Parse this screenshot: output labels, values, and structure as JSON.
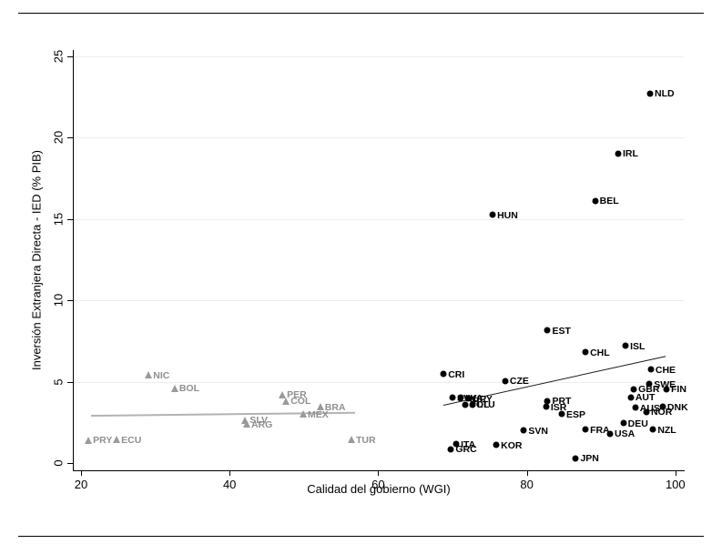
{
  "chart_data": {
    "type": "scatter",
    "title": "",
    "xlabel": "Calidad del gobierno (WGI)",
    "ylabel": "Inversión Extranjera Directa - IED (% PIB)",
    "xlim": [
      20,
      100
    ],
    "ylim": [
      0,
      25
    ],
    "x_ticks": [
      "20",
      "40",
      "60",
      "80",
      "100"
    ],
    "y_ticks": [
      "0",
      "5",
      "10",
      "15",
      "20",
      "25"
    ],
    "grid": "horizontal-light",
    "legend_position": "none",
    "series": [
      {
        "name": "america-latina",
        "marker": "triangle",
        "color": "#9a9a9a",
        "label_color": "#8f8f8f",
        "points": [
          {
            "label": "PRY",
            "x": 21.0,
            "y": 1.4
          },
          {
            "label": "ECU",
            "x": 24.8,
            "y": 1.45
          },
          {
            "label": "NIC",
            "x": 29.1,
            "y": 5.4
          },
          {
            "label": "BOL",
            "x": 32.6,
            "y": 4.6
          },
          {
            "label": "SLV",
            "x": 42.1,
            "y": 2.65
          },
          {
            "label": "ARG",
            "x": 42.3,
            "y": 2.4
          },
          {
            "label": "PER",
            "x": 47.1,
            "y": 4.2
          },
          {
            "label": "COL",
            "x": 47.6,
            "y": 3.8
          },
          {
            "label": "MEX",
            "x": 49.9,
            "y": 3.0
          },
          {
            "label": "BRA",
            "x": 52.2,
            "y": 3.45
          },
          {
            "label": "TUR",
            "x": 56.4,
            "y": 1.45
          }
        ]
      },
      {
        "name": "ocde",
        "marker": "circle",
        "color": "#000000",
        "label_color": "#000000",
        "points": [
          {
            "label": "CRI",
            "x": 68.8,
            "y": 5.45
          },
          {
            "label": "GRC",
            "x": 69.8,
            "y": 0.85
          },
          {
            "label": "ITA",
            "x": 70.5,
            "y": 1.15
          },
          {
            "label": "SVK",
            "x": 70.0,
            "y": 4.0
          },
          {
            "label": "LVA",
            "x": 71.1,
            "y": 4.0
          },
          {
            "label": "URY",
            "x": 72.1,
            "y": 3.95
          },
          {
            "label": "POL",
            "x": 71.7,
            "y": 3.6
          },
          {
            "label": "LTU",
            "x": 72.7,
            "y": 3.6
          },
          {
            "label": "HUN",
            "x": 75.4,
            "y": 15.25
          },
          {
            "label": "KOR",
            "x": 75.9,
            "y": 1.1
          },
          {
            "label": "CZE",
            "x": 77.1,
            "y": 5.05
          },
          {
            "label": "SVN",
            "x": 79.6,
            "y": 2.0
          },
          {
            "label": "EST",
            "x": 82.8,
            "y": 8.15
          },
          {
            "label": "PRT",
            "x": 82.8,
            "y": 3.8
          },
          {
            "label": "ISR",
            "x": 82.6,
            "y": 3.45
          },
          {
            "label": "ESP",
            "x": 84.7,
            "y": 3.0
          },
          {
            "label": "JPN",
            "x": 86.6,
            "y": 0.3
          },
          {
            "label": "CHL",
            "x": 87.9,
            "y": 6.8
          },
          {
            "label": "FRA",
            "x": 87.9,
            "y": 2.05
          },
          {
            "label": "BEL",
            "x": 89.2,
            "y": 16.1
          },
          {
            "label": "USA",
            "x": 91.2,
            "y": 1.8
          },
          {
            "label": "IRL",
            "x": 92.3,
            "y": 19.0
          },
          {
            "label": "DEU",
            "x": 93.0,
            "y": 2.45
          },
          {
            "label": "ISL",
            "x": 93.3,
            "y": 7.2
          },
          {
            "label": "AUT",
            "x": 94.0,
            "y": 4.05
          },
          {
            "label": "GBR",
            "x": 94.4,
            "y": 4.55
          },
          {
            "label": "AUS",
            "x": 94.6,
            "y": 3.4
          },
          {
            "label": "NOR",
            "x": 96.1,
            "y": 3.15
          },
          {
            "label": "SWE",
            "x": 96.5,
            "y": 4.85
          },
          {
            "label": "NLD",
            "x": 96.6,
            "y": 22.7
          },
          {
            "label": "CHE",
            "x": 96.7,
            "y": 5.75
          },
          {
            "label": "NZL",
            "x": 97.0,
            "y": 2.05
          },
          {
            "label": "DNK",
            "x": 98.3,
            "y": 3.45
          },
          {
            "label": "FIN",
            "x": 98.8,
            "y": 4.55
          }
        ]
      }
    ],
    "trend_lines": [
      {
        "series": "america-latina",
        "color": "#b3b3b3",
        "width": 2,
        "x1": 21.3,
        "y1": 2.97,
        "x2": 56.8,
        "y2": 3.15
      },
      {
        "series": "ocde",
        "color": "#1a1a1a",
        "width": 1.4,
        "x1": 68.8,
        "y1": 3.6,
        "x2": 98.7,
        "y2": 6.6
      }
    ]
  }
}
